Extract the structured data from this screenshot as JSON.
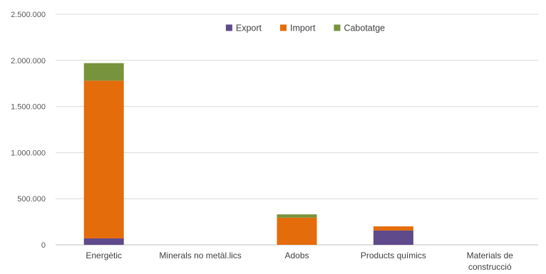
{
  "chart_data": {
    "type": "bar",
    "stacked": true,
    "categories": [
      [
        "Energètic"
      ],
      [
        "Minerals no metàl.lics"
      ],
      [
        "Adobs"
      ],
      [
        "Products químics"
      ],
      [
        "Materials de",
        "construcció"
      ]
    ],
    "series": [
      {
        "name": "Export",
        "color": "#5F4A8B",
        "values": [
          70000,
          0,
          0,
          155000,
          0
        ]
      },
      {
        "name": "Import",
        "color": "#E46C0A",
        "values": [
          1710000,
          0,
          295000,
          45000,
          0
        ]
      },
      {
        "name": "Cabotatge",
        "color": "#77933C",
        "values": [
          190000,
          0,
          35000,
          0,
          0
        ]
      }
    ],
    "ylim": [
      0,
      2500000
    ],
    "yticks": [
      0,
      500000,
      1000000,
      1500000,
      2000000,
      2500000
    ],
    "ytick_labels": [
      "0",
      "500.000",
      "1.000.000",
      "1.500.000",
      "2.000.000",
      "2.500.000"
    ],
    "grid": true,
    "legend_position": "top-center"
  }
}
